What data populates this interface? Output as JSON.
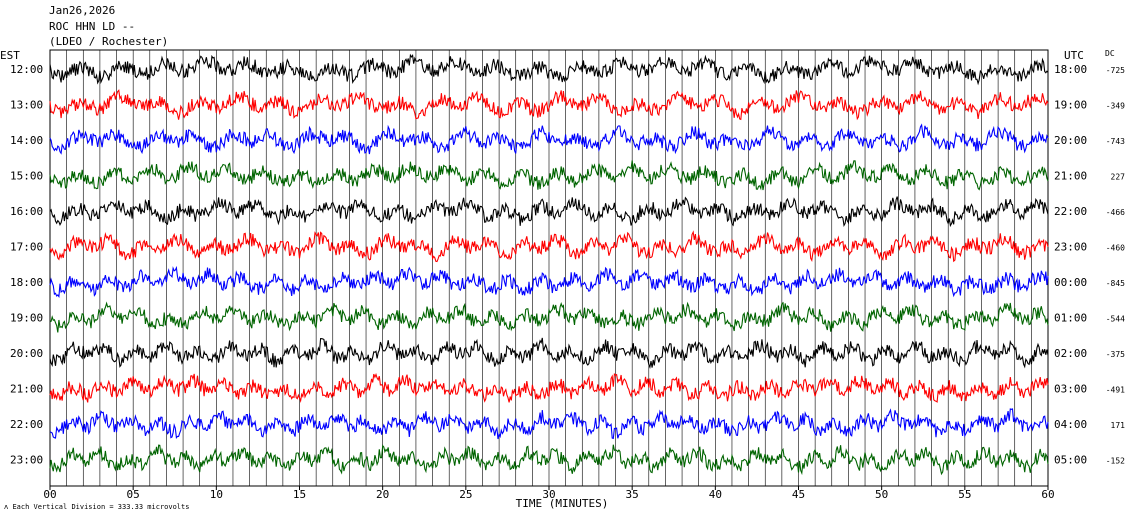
{
  "header": {
    "date": "Jan26,2026",
    "station": "ROC HHN LD --",
    "network": "(LDEO / Rochester)"
  },
  "left_zone_label": "EST",
  "right_zone_label": "UTC",
  "dc_label": "DC",
  "footer": {
    "mark": "ʌ",
    "text": "Each Vertical Division =  333.33 microvolts"
  },
  "chart_data": {
    "type": "line",
    "title": "",
    "xlabel": "TIME (MINUTES)",
    "x_ticks": [
      "00",
      "05",
      "10",
      "15",
      "20",
      "25",
      "30",
      "35",
      "40",
      "45",
      "50",
      "55",
      "60"
    ],
    "xlim": [
      0,
      60
    ],
    "grid": "vertical lines every minute",
    "trace_colors": [
      "#000000",
      "#ff0000",
      "#0000ff",
      "#006400"
    ],
    "rows": [
      {
        "est": "12:00",
        "utc": "18:00",
        "dc": "-725"
      },
      {
        "est": "13:00",
        "utc": "19:00",
        "dc": "-349"
      },
      {
        "est": "14:00",
        "utc": "20:00",
        "dc": "-743"
      },
      {
        "est": "15:00",
        "utc": "21:00",
        "dc": "227"
      },
      {
        "est": "16:00",
        "utc": "22:00",
        "dc": "-466"
      },
      {
        "est": "17:00",
        "utc": "23:00",
        "dc": "-460"
      },
      {
        "est": "18:00",
        "utc": "00:00",
        "dc": "-845"
      },
      {
        "est": "19:00",
        "utc": "01:00",
        "dc": "-544"
      },
      {
        "est": "20:00",
        "utc": "02:00",
        "dc": "-375"
      },
      {
        "est": "21:00",
        "utc": "03:00",
        "dc": "-491"
      },
      {
        "est": "22:00",
        "utc": "04:00",
        "dc": "171"
      },
      {
        "est": "23:00",
        "utc": "05:00",
        "dc": "-152"
      }
    ]
  }
}
